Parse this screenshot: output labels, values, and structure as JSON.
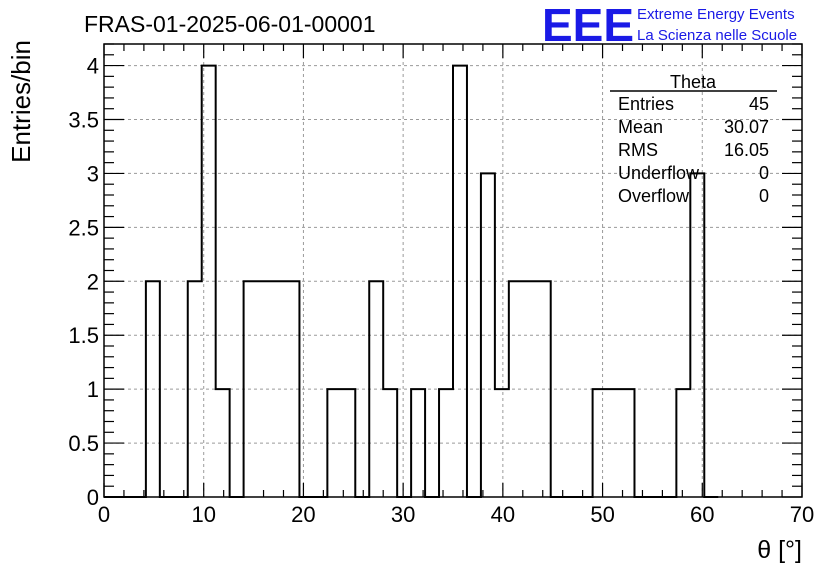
{
  "chart_data": {
    "type": "bar",
    "title": "FRAS-01-2025-06-01-00001",
    "xlabel": "θ [°]",
    "ylabel": "Entries/bin",
    "xlim": [
      0,
      70
    ],
    "ylim": [
      0,
      4.2
    ],
    "grid": true,
    "x_ticks": [
      0,
      10,
      20,
      30,
      40,
      50,
      60,
      70
    ],
    "y_ticks": [
      0,
      0.5,
      1,
      1.5,
      2,
      2.5,
      3,
      3.5,
      4
    ],
    "x_tick_labels": [
      "0",
      "10",
      "20",
      "30",
      "40",
      "50",
      "60",
      "70"
    ],
    "y_tick_labels": [
      "0",
      "0.5",
      "1",
      "1.5",
      "2",
      "2.5",
      "3",
      "3.5",
      "4"
    ],
    "bin_width": 1.4,
    "bins": [
      {
        "x": 0.0,
        "count": 0
      },
      {
        "x": 1.4,
        "count": 0
      },
      {
        "x": 2.8,
        "count": 0
      },
      {
        "x": 4.2,
        "count": 2
      },
      {
        "x": 5.6,
        "count": 0
      },
      {
        "x": 7.0,
        "count": 0
      },
      {
        "x": 8.4,
        "count": 2
      },
      {
        "x": 9.8,
        "count": 4
      },
      {
        "x": 11.2,
        "count": 1
      },
      {
        "x": 12.6,
        "count": 0
      },
      {
        "x": 14.0,
        "count": 2
      },
      {
        "x": 15.4,
        "count": 2
      },
      {
        "x": 16.8,
        "count": 2
      },
      {
        "x": 18.2,
        "count": 2
      },
      {
        "x": 19.6,
        "count": 0
      },
      {
        "x": 21.0,
        "count": 0
      },
      {
        "x": 22.4,
        "count": 1
      },
      {
        "x": 23.8,
        "count": 1
      },
      {
        "x": 25.2,
        "count": 0
      },
      {
        "x": 26.6,
        "count": 2
      },
      {
        "x": 28.0,
        "count": 1
      },
      {
        "x": 29.4,
        "count": 0
      },
      {
        "x": 30.8,
        "count": 1
      },
      {
        "x": 32.2,
        "count": 0
      },
      {
        "x": 33.6,
        "count": 1
      },
      {
        "x": 35.0,
        "count": 4
      },
      {
        "x": 36.4,
        "count": 0
      },
      {
        "x": 37.8,
        "count": 3
      },
      {
        "x": 39.2,
        "count": 1
      },
      {
        "x": 40.6,
        "count": 2
      },
      {
        "x": 42.0,
        "count": 2
      },
      {
        "x": 43.4,
        "count": 2
      },
      {
        "x": 44.8,
        "count": 0
      },
      {
        "x": 46.2,
        "count": 0
      },
      {
        "x": 47.6,
        "count": 0
      },
      {
        "x": 49.0,
        "count": 1
      },
      {
        "x": 50.4,
        "count": 1
      },
      {
        "x": 51.8,
        "count": 1
      },
      {
        "x": 53.2,
        "count": 0
      },
      {
        "x": 54.6,
        "count": 0
      },
      {
        "x": 56.0,
        "count": 0
      },
      {
        "x": 57.4,
        "count": 1
      },
      {
        "x": 58.8,
        "count": 3
      },
      {
        "x": 60.2,
        "count": 0
      }
    ],
    "stats": {
      "title": "Theta",
      "rows": [
        {
          "label": "Entries",
          "value": "45"
        },
        {
          "label": "Mean",
          "value": "30.07"
        },
        {
          "label": "RMS",
          "value": "16.05"
        },
        {
          "label": "Underflow",
          "value": "0"
        },
        {
          "label": "Overflow",
          "value": "0"
        }
      ]
    },
    "line_color": "#000000",
    "grid_color": "#9a9a9a"
  },
  "logo": {
    "text": "EEE",
    "line1": "Extreme Energy Events",
    "line2": "La Scienza nelle Scuole",
    "color": "#1a1ae6"
  }
}
